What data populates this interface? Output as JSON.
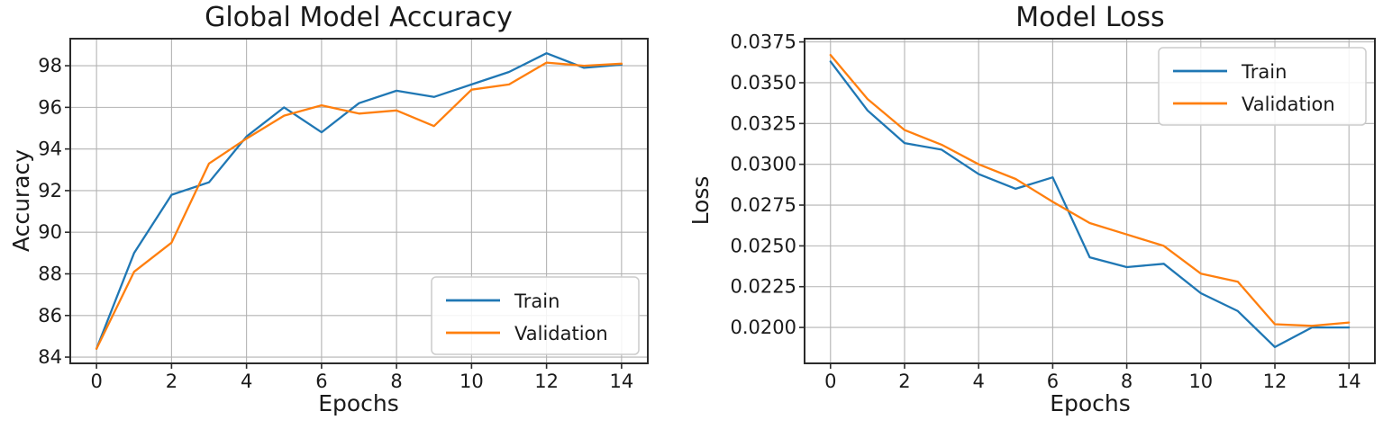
{
  "figure": {
    "background": "#ffffff"
  },
  "colors": {
    "train": "#1f77b4",
    "validation": "#ff7f0e",
    "grid": "#b3b3b3",
    "spine": "#2b2b2b",
    "text": "#1a1a1a",
    "legend_border": "#cccccc",
    "legend_background": "rgba(255,255,255,0.85)"
  },
  "legend": {
    "entries": [
      "Train",
      "Validation"
    ]
  },
  "chart_data": [
    {
      "id": "accuracy",
      "type": "line",
      "title": "Global Model Accuracy",
      "xlabel": "Epochs",
      "ylabel": "Accuracy",
      "x": [
        0,
        1,
        2,
        3,
        4,
        5,
        6,
        7,
        8,
        9,
        10,
        11,
        12,
        13,
        14
      ],
      "series": [
        {
          "name": "Train",
          "color": "#1f77b4",
          "values": [
            84.4,
            89.0,
            91.8,
            92.4,
            94.6,
            96.0,
            94.8,
            96.2,
            96.8,
            96.5,
            97.1,
            97.7,
            98.6,
            97.9,
            98.05
          ]
        },
        {
          "name": "Validation",
          "color": "#ff7f0e",
          "values": [
            84.4,
            88.1,
            89.5,
            93.3,
            94.5,
            95.6,
            96.1,
            95.7,
            95.85,
            95.1,
            96.85,
            97.1,
            98.15,
            98.0,
            98.1
          ]
        }
      ],
      "xlim": [
        -0.7,
        14.7
      ],
      "ylim": [
        83.7,
        99.3
      ],
      "xtick_values": [
        0,
        2,
        4,
        6,
        8,
        10,
        12,
        14
      ],
      "xtick_labels": [
        "0",
        "2",
        "4",
        "6",
        "8",
        "10",
        "12",
        "14"
      ],
      "ytick_values": [
        84,
        86,
        88,
        90,
        92,
        94,
        96,
        98
      ],
      "ytick_labels": [
        "84",
        "86",
        "88",
        "90",
        "92",
        "94",
        "96",
        "98"
      ],
      "grid": true,
      "legend_position": "lower-right"
    },
    {
      "id": "loss",
      "type": "line",
      "title": "Model Loss",
      "xlabel": "Epochs",
      "ylabel": "Loss",
      "x": [
        0,
        1,
        2,
        3,
        4,
        5,
        6,
        7,
        8,
        9,
        10,
        11,
        12,
        13,
        14
      ],
      "series": [
        {
          "name": "Train",
          "color": "#1f77b4",
          "values": [
            0.0363,
            0.0333,
            0.0313,
            0.0309,
            0.0294,
            0.0285,
            0.0292,
            0.0243,
            0.0237,
            0.0239,
            0.0221,
            0.021,
            0.0188,
            0.02,
            0.02
          ]
        },
        {
          "name": "Validation",
          "color": "#ff7f0e",
          "values": [
            0.0367,
            0.034,
            0.0321,
            0.0312,
            0.03,
            0.0291,
            0.0277,
            0.0264,
            0.0257,
            0.025,
            0.0233,
            0.0228,
            0.0202,
            0.0201,
            0.0203
          ]
        }
      ],
      "xlim": [
        -0.7,
        14.7
      ],
      "ylim": [
        0.0178,
        0.0377
      ],
      "xtick_values": [
        0,
        2,
        4,
        6,
        8,
        10,
        12,
        14
      ],
      "xtick_labels": [
        "0",
        "2",
        "4",
        "6",
        "8",
        "10",
        "12",
        "14"
      ],
      "ytick_values": [
        0.02,
        0.0225,
        0.025,
        0.0275,
        0.03,
        0.0325,
        0.035,
        0.0375
      ],
      "ytick_labels": [
        "0.0200",
        "0.0225",
        "0.0250",
        "0.0275",
        "0.0300",
        "0.0325",
        "0.0350",
        "0.0375"
      ],
      "grid": true,
      "legend_position": "upper-right"
    }
  ]
}
